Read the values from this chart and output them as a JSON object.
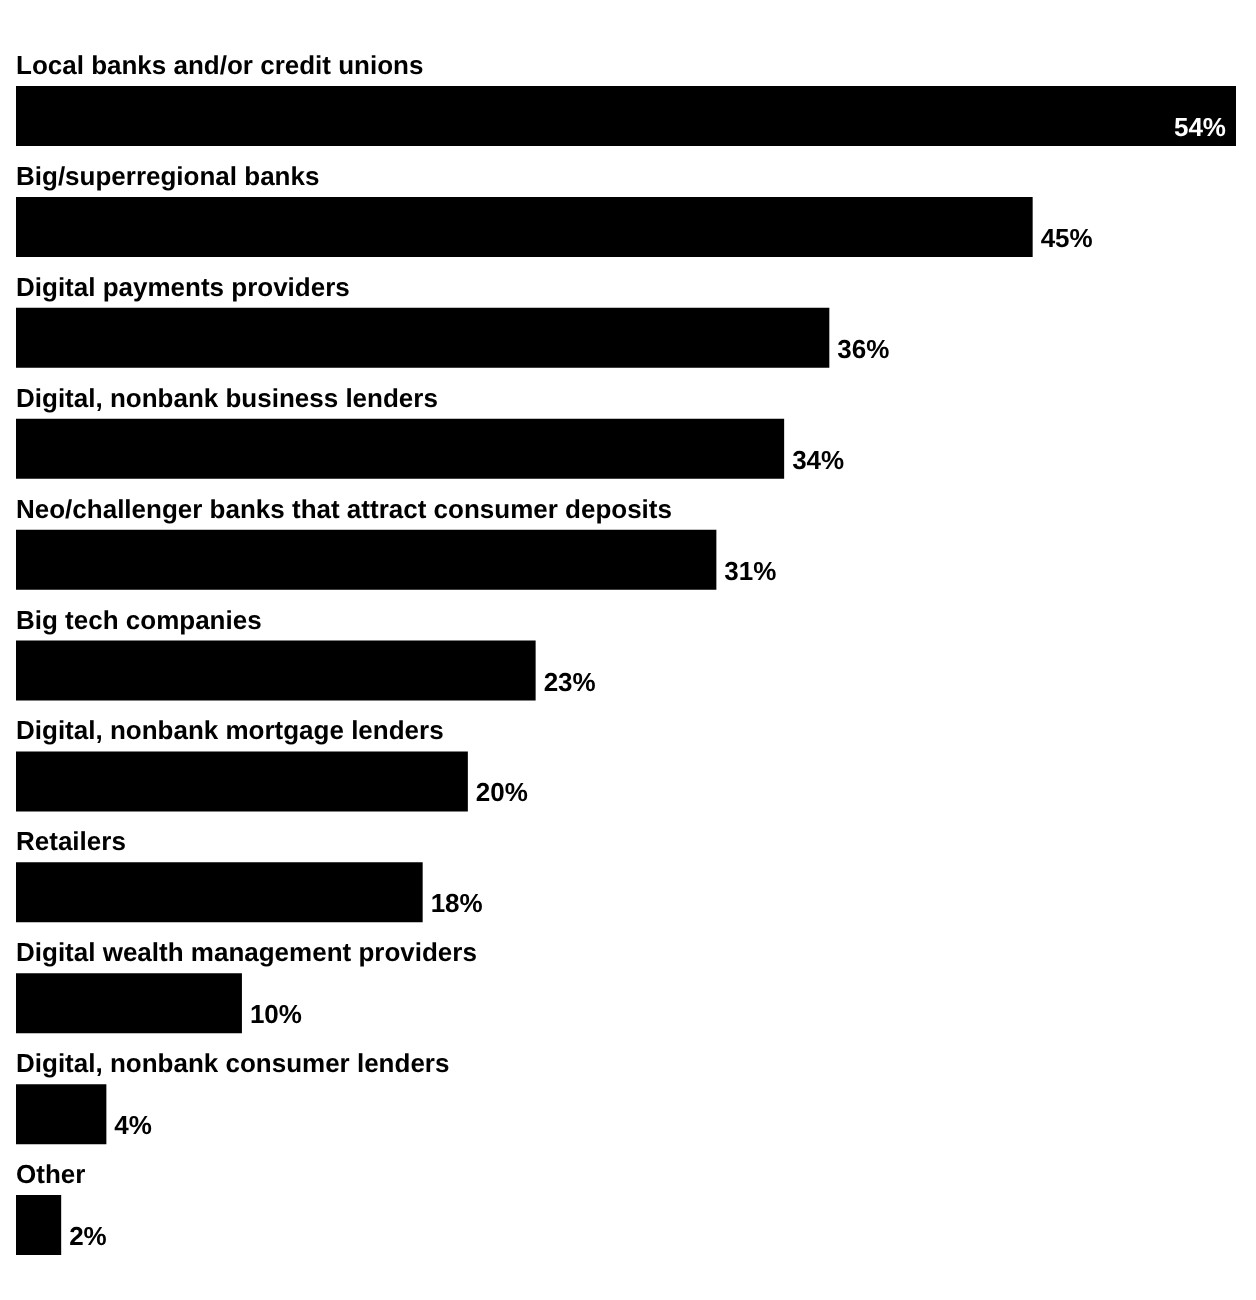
{
  "chart_data": {
    "type": "bar",
    "orientation": "horizontal",
    "categories": [
      "Local banks and/or credit unions",
      "Big/superregional banks",
      "Digital payments providers",
      "Digital, nonbank business lenders",
      "Neo/challenger banks that attract consumer deposits",
      "Big tech companies",
      "Digital, nonbank mortgage lenders",
      "Retailers",
      "Digital wealth management providers",
      "Digital, nonbank consumer lenders",
      "Other"
    ],
    "values": [
      54,
      45,
      36,
      34,
      31,
      23,
      20,
      18,
      10,
      4,
      2
    ],
    "value_labels": [
      "54%",
      "45%",
      "36%",
      "34%",
      "31%",
      "23%",
      "20%",
      "18%",
      "10%",
      "4%",
      "2%"
    ],
    "color": "#000000"
  }
}
